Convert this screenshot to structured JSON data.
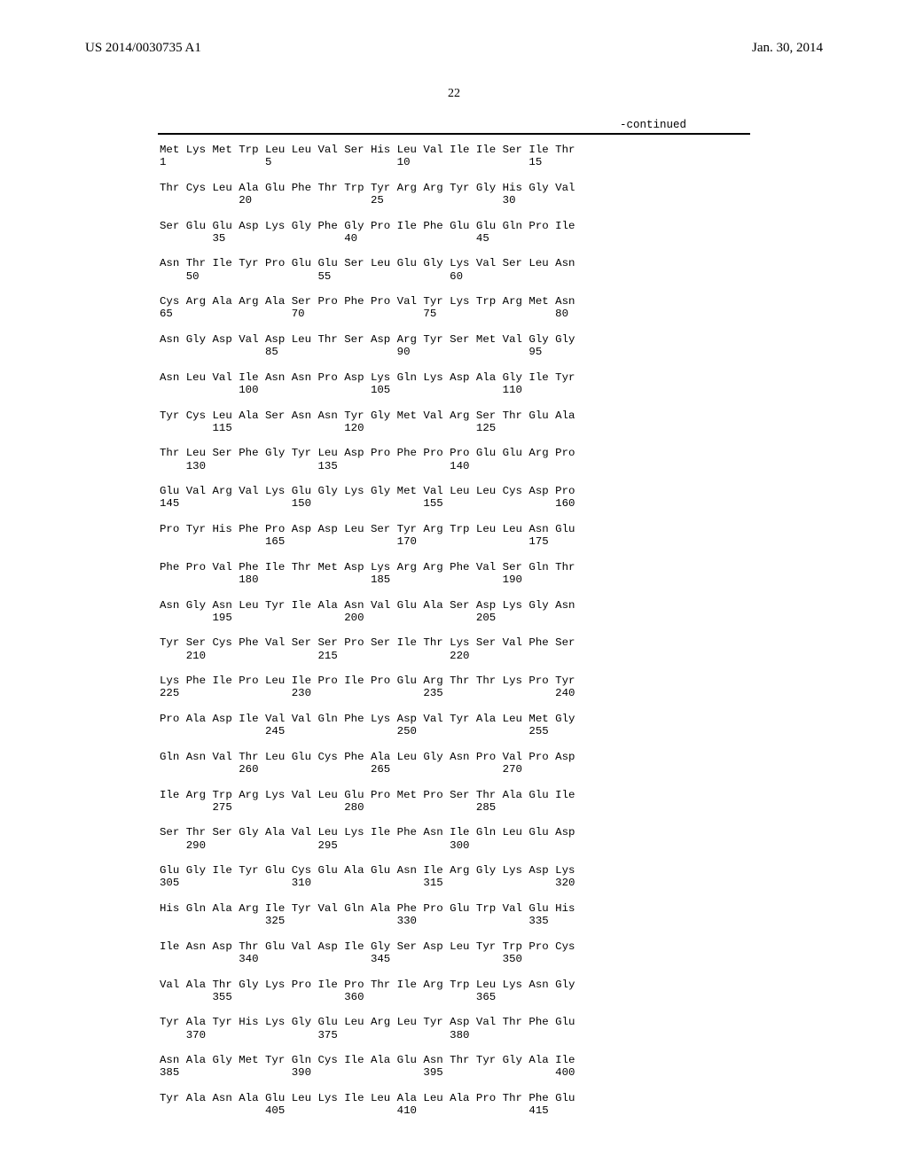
{
  "header": {
    "pub_number": "US 2014/0030735 A1",
    "pub_date": "Jan. 30, 2014"
  },
  "page_number": "22",
  "continued_label": "-continued",
  "sequence_text": "Met Lys Met Trp Leu Leu Val Ser His Leu Val Ile Ile Ser Ile Thr\n1               5                   10                  15\n\nThr Cys Leu Ala Glu Phe Thr Trp Tyr Arg Arg Tyr Gly His Gly Val\n            20                  25                  30\n\nSer Glu Glu Asp Lys Gly Phe Gly Pro Ile Phe Glu Glu Gln Pro Ile\n        35                  40                  45\n\nAsn Thr Ile Tyr Pro Glu Glu Ser Leu Glu Gly Lys Val Ser Leu Asn\n    50                  55                  60\n\nCys Arg Ala Arg Ala Ser Pro Phe Pro Val Tyr Lys Trp Arg Met Asn\n65                  70                  75                  80\n\nAsn Gly Asp Val Asp Leu Thr Ser Asp Arg Tyr Ser Met Val Gly Gly\n                85                  90                  95\n\nAsn Leu Val Ile Asn Asn Pro Asp Lys Gln Lys Asp Ala Gly Ile Tyr\n            100                 105                 110\n\nTyr Cys Leu Ala Ser Asn Asn Tyr Gly Met Val Arg Ser Thr Glu Ala\n        115                 120                 125\n\nThr Leu Ser Phe Gly Tyr Leu Asp Pro Phe Pro Pro Glu Glu Arg Pro\n    130                 135                 140\n\nGlu Val Arg Val Lys Glu Gly Lys Gly Met Val Leu Leu Cys Asp Pro\n145                 150                 155                 160\n\nPro Tyr His Phe Pro Asp Asp Leu Ser Tyr Arg Trp Leu Leu Asn Glu\n                165                 170                 175\n\nPhe Pro Val Phe Ile Thr Met Asp Lys Arg Arg Phe Val Ser Gln Thr\n            180                 185                 190\n\nAsn Gly Asn Leu Tyr Ile Ala Asn Val Glu Ala Ser Asp Lys Gly Asn\n        195                 200                 205\n\nTyr Ser Cys Phe Val Ser Ser Pro Ser Ile Thr Lys Ser Val Phe Ser\n    210                 215                 220\n\nLys Phe Ile Pro Leu Ile Pro Ile Pro Glu Arg Thr Thr Lys Pro Tyr\n225                 230                 235                 240\n\nPro Ala Asp Ile Val Val Gln Phe Lys Asp Val Tyr Ala Leu Met Gly\n                245                 250                 255\n\nGln Asn Val Thr Leu Glu Cys Phe Ala Leu Gly Asn Pro Val Pro Asp\n            260                 265                 270\n\nIle Arg Trp Arg Lys Val Leu Glu Pro Met Pro Ser Thr Ala Glu Ile\n        275                 280                 285\n\nSer Thr Ser Gly Ala Val Leu Lys Ile Phe Asn Ile Gln Leu Glu Asp\n    290                 295                 300\n\nGlu Gly Ile Tyr Glu Cys Glu Ala Glu Asn Ile Arg Gly Lys Asp Lys\n305                 310                 315                 320\n\nHis Gln Ala Arg Ile Tyr Val Gln Ala Phe Pro Glu Trp Val Glu His\n                325                 330                 335\n\nIle Asn Asp Thr Glu Val Asp Ile Gly Ser Asp Leu Tyr Trp Pro Cys\n            340                 345                 350\n\nVal Ala Thr Gly Lys Pro Ile Pro Thr Ile Arg Trp Leu Lys Asn Gly\n        355                 360                 365\n\nTyr Ala Tyr His Lys Gly Glu Leu Arg Leu Tyr Asp Val Thr Phe Glu\n    370                 375                 380\n\nAsn Ala Gly Met Tyr Gln Cys Ile Ala Glu Asn Thr Tyr Gly Ala Ile\n385                 390                 395                 400\n\nTyr Ala Asn Ala Glu Leu Lys Ile Leu Ala Leu Ala Pro Thr Phe Glu\n                405                 410                 415"
}
